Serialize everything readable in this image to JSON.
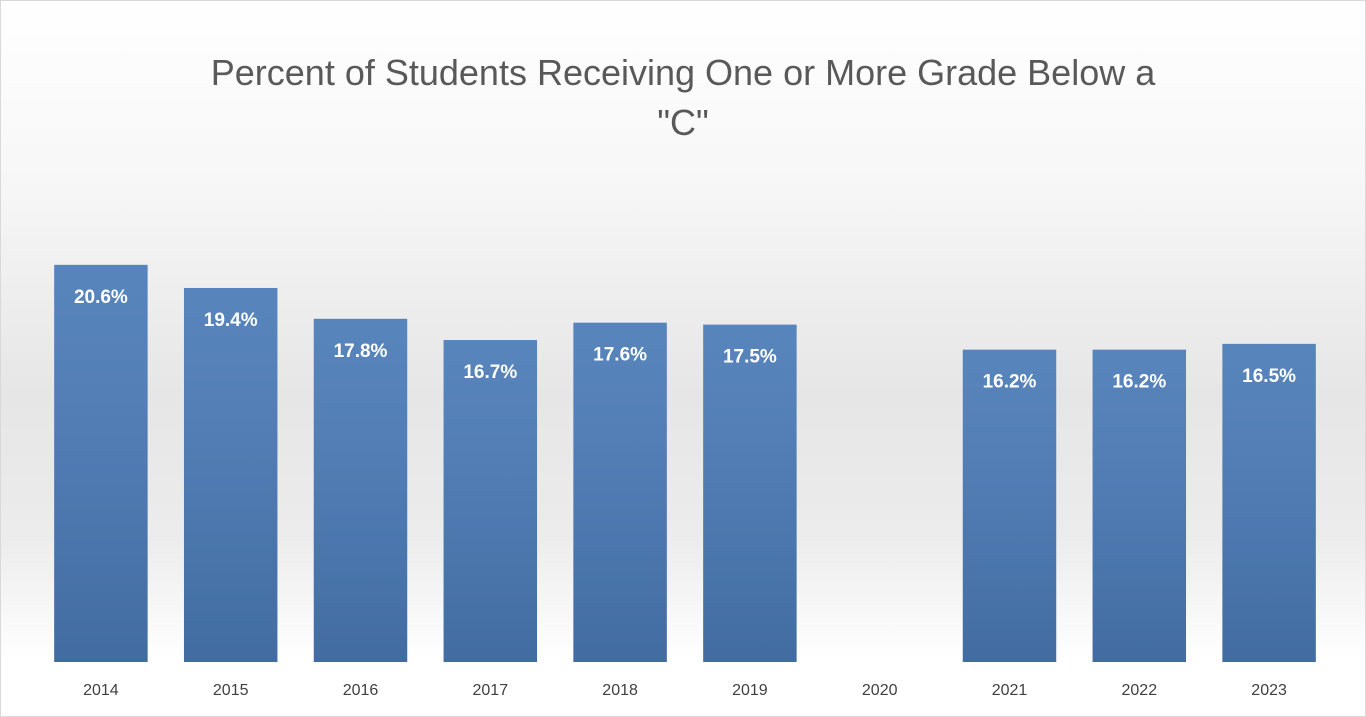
{
  "chart_data": {
    "type": "bar",
    "title": "Percent of Students Receiving One or More Grade Below a \"C\"",
    "categories": [
      "2014",
      "2015",
      "2016",
      "2017",
      "2018",
      "2019",
      "2020",
      "2021",
      "2022",
      "2023"
    ],
    "values": [
      20.6,
      19.4,
      17.8,
      16.7,
      17.6,
      17.5,
      null,
      16.2,
      16.2,
      16.5
    ],
    "value_labels": [
      "20.6%",
      "19.4%",
      "17.8%",
      "16.7%",
      "17.6%",
      "17.5%",
      null,
      "16.2%",
      "16.2%",
      "16.5%"
    ],
    "color": "#4a7ab7",
    "ylim": [
      0,
      25
    ]
  }
}
